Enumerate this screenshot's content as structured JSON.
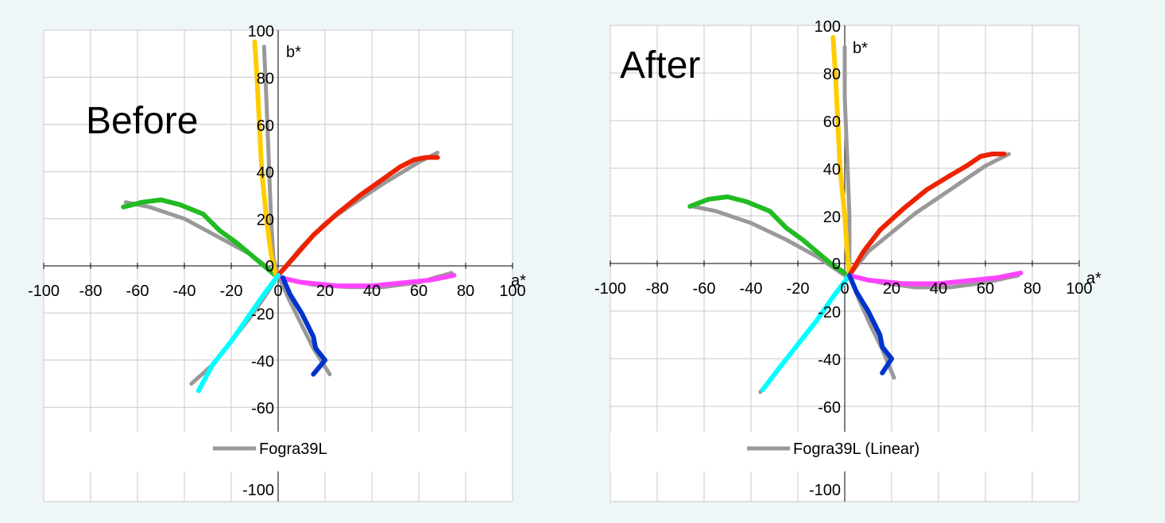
{
  "chart_data": [
    {
      "type": "line",
      "title": "Before",
      "xlabel": "a*",
      "ylabel": "b*",
      "xlim": [
        -100,
        100
      ],
      "ylim": [
        -100,
        100
      ],
      "x_ticks": [
        "-100",
        "-80",
        "-60",
        "-40",
        "-20",
        "0",
        "20",
        "40",
        "60",
        "80",
        "100"
      ],
      "y_ticks": [
        "100",
        "80",
        "60",
        "40",
        "20",
        "0",
        "-20",
        "-40",
        "-60",
        "-100"
      ],
      "grid": true,
      "legend": {
        "position": "bottom",
        "entries": [
          "Fogra39L"
        ]
      },
      "series": [
        {
          "name": "Fogra39L",
          "color": "#999999",
          "points": [
            [
              -65,
              27
            ],
            [
              -55,
              25
            ],
            [
              -40,
              20
            ],
            [
              -25,
              12
            ],
            [
              -12,
              5
            ],
            [
              0,
              -4
            ]
          ]
        },
        {
          "name": "Fogra39L",
          "color": "#999999",
          "points": [
            [
              -6,
              93
            ],
            [
              -5,
              70
            ],
            [
              -4,
              45
            ],
            [
              -3,
              20
            ],
            [
              -2,
              3
            ],
            [
              0,
              -4
            ]
          ]
        },
        {
          "name": "Fogra39L",
          "color": "#999999",
          "points": [
            [
              0,
              -4
            ],
            [
              10,
              8
            ],
            [
              20,
              18
            ],
            [
              30,
              25
            ],
            [
              45,
              35
            ],
            [
              60,
              44
            ],
            [
              68,
              48
            ]
          ]
        },
        {
          "name": "Fogra39L",
          "color": "#999999",
          "points": [
            [
              0,
              -5
            ],
            [
              15,
              -8
            ],
            [
              30,
              -9
            ],
            [
              45,
              -9
            ],
            [
              60,
              -7
            ],
            [
              74,
              -3
            ]
          ]
        },
        {
          "name": "Fogra39L",
          "color": "#999999",
          "points": [
            [
              0,
              -4
            ],
            [
              -5,
              -12
            ],
            [
              -12,
              -22
            ],
            [
              -20,
              -32
            ],
            [
              -28,
              -42
            ],
            [
              -37,
              -50
            ]
          ]
        },
        {
          "name": "Fogra39L",
          "color": "#999999",
          "points": [
            [
              0,
              -4
            ],
            [
              5,
              -15
            ],
            [
              10,
              -25
            ],
            [
              15,
              -35
            ],
            [
              22,
              -46
            ]
          ]
        },
        {
          "color": "#22bb22",
          "points": [
            [
              -66,
              25
            ],
            [
              -58,
              27
            ],
            [
              -50,
              28
            ],
            [
              -42,
              26
            ],
            [
              -32,
              22
            ],
            [
              -25,
              15
            ],
            [
              -18,
              10
            ],
            [
              -12,
              5
            ],
            [
              -6,
              0
            ],
            [
              0,
              -5
            ]
          ]
        },
        {
          "color": "#ffcc00",
          "points": [
            [
              -10,
              95
            ],
            [
              -9,
              80
            ],
            [
              -8,
              60
            ],
            [
              -7,
              40
            ],
            [
              -5,
              20
            ],
            [
              -3,
              5
            ],
            [
              -1,
              -4
            ]
          ]
        },
        {
          "color": "#ee2200",
          "points": [
            [
              0,
              -4
            ],
            [
              8,
              5
            ],
            [
              15,
              13
            ],
            [
              25,
              22
            ],
            [
              35,
              30
            ],
            [
              45,
              37
            ],
            [
              52,
              42
            ],
            [
              58,
              45
            ],
            [
              63,
              46
            ],
            [
              68,
              46
            ]
          ]
        },
        {
          "color": "#ff44ff",
          "points": [
            [
              1,
              -5
            ],
            [
              10,
              -7
            ],
            [
              25,
              -8.5
            ],
            [
              40,
              -8.5
            ],
            [
              55,
              -7
            ],
            [
              65,
              -6
            ],
            [
              75,
              -4
            ]
          ]
        },
        {
          "color": "#00ffff",
          "points": [
            [
              0,
              -4
            ],
            [
              -6,
              -12
            ],
            [
              -13,
              -22
            ],
            [
              -20,
              -32
            ],
            [
              -28,
              -42
            ],
            [
              -34,
              -53
            ]
          ]
        },
        {
          "color": "#0033cc",
          "points": [
            [
              2,
              -5
            ],
            [
              5,
              -12
            ],
            [
              10,
              -20
            ],
            [
              15,
              -30
            ],
            [
              16,
              -35
            ],
            [
              20,
              -40
            ],
            [
              15,
              -46
            ]
          ]
        }
      ]
    },
    {
      "type": "line",
      "title": "After",
      "xlabel": "a*",
      "ylabel": "b*",
      "xlim": [
        -100,
        100
      ],
      "ylim": [
        -100,
        100
      ],
      "x_ticks": [
        "-100",
        "-80",
        "-60",
        "-40",
        "-20",
        "0",
        "20",
        "40",
        "60",
        "80",
        "100"
      ],
      "y_ticks": [
        "100",
        "80",
        "60",
        "40",
        "20",
        "0",
        "-20",
        "-40",
        "-60",
        "-100"
      ],
      "grid": true,
      "legend": {
        "position": "bottom",
        "entries": [
          "Fogra39L (Linear)"
        ]
      },
      "series": [
        {
          "name": "Fogra39L (Linear)",
          "color": "#999999",
          "points": [
            [
              -65,
              24
            ],
            [
              -55,
              22
            ],
            [
              -40,
              17
            ],
            [
              -25,
              10
            ],
            [
              -12,
              3
            ],
            [
              0,
              -5
            ]
          ]
        },
        {
          "name": "Fogra39L (Linear)",
          "color": "#999999",
          "points": [
            [
              0,
              91
            ],
            [
              0,
              70
            ],
            [
              1,
              45
            ],
            [
              2,
              20
            ],
            [
              2,
              3
            ],
            [
              2,
              -5
            ]
          ]
        },
        {
          "name": "Fogra39L (Linear)",
          "color": "#999999",
          "points": [
            [
              2,
              -5
            ],
            [
              10,
              5
            ],
            [
              20,
              13
            ],
            [
              30,
              21
            ],
            [
              45,
              31
            ],
            [
              60,
              41
            ],
            [
              70,
              46
            ]
          ]
        },
        {
          "name": "Fogra39L (Linear)",
          "color": "#999999",
          "points": [
            [
              2,
              -5
            ],
            [
              15,
              -8
            ],
            [
              30,
              -10
            ],
            [
              45,
              -10
            ],
            [
              60,
              -8
            ],
            [
              74,
              -5
            ]
          ]
        },
        {
          "name": "Fogra39L (Linear)",
          "color": "#999999",
          "points": [
            [
              2,
              -5
            ],
            [
              -5,
              -14
            ],
            [
              -12,
              -24
            ],
            [
              -20,
              -34
            ],
            [
              -28,
              -44
            ],
            [
              -36,
              -54
            ]
          ]
        },
        {
          "name": "Fogra39L (Linear)",
          "color": "#999999",
          "points": [
            [
              2,
              -5
            ],
            [
              6,
              -15
            ],
            [
              11,
              -26
            ],
            [
              16,
              -36
            ],
            [
              21,
              -48
            ]
          ]
        },
        {
          "color": "#22bb22",
          "points": [
            [
              -66,
              24
            ],
            [
              -58,
              27
            ],
            [
              -50,
              28
            ],
            [
              -42,
              26
            ],
            [
              -32,
              22
            ],
            [
              -25,
              15
            ],
            [
              -18,
              10
            ],
            [
              -12,
              5
            ],
            [
              -6,
              0
            ],
            [
              0,
              -4
            ]
          ]
        },
        {
          "color": "#ffcc00",
          "points": [
            [
              -5,
              95
            ],
            [
              -4,
              80
            ],
            [
              -3,
              60
            ],
            [
              -2,
              40
            ],
            [
              0,
              20
            ],
            [
              1,
              5
            ],
            [
              2,
              -5
            ]
          ]
        },
        {
          "color": "#ee2200",
          "points": [
            [
              2,
              -5
            ],
            [
              8,
              5
            ],
            [
              15,
              14
            ],
            [
              25,
              23
            ],
            [
              35,
              31
            ],
            [
              45,
              37
            ],
            [
              52,
              41
            ],
            [
              58,
              45
            ],
            [
              63,
              46
            ],
            [
              68,
              46
            ]
          ]
        },
        {
          "color": "#ff44ff",
          "points": [
            [
              2,
              -5
            ],
            [
              10,
              -7
            ],
            [
              25,
              -8.5
            ],
            [
              40,
              -8.5
            ],
            [
              55,
              -7
            ],
            [
              65,
              -6
            ],
            [
              75,
              -4
            ]
          ]
        },
        {
          "color": "#00ffff",
          "points": [
            [
              2,
              -5
            ],
            [
              -5,
              -14
            ],
            [
              -12,
              -24
            ],
            [
              -20,
              -34
            ],
            [
              -28,
              -44
            ],
            [
              -35,
              -53
            ]
          ]
        },
        {
          "color": "#0033cc",
          "points": [
            [
              2,
              -5
            ],
            [
              5,
              -12
            ],
            [
              10,
              -20
            ],
            [
              15,
              -30
            ],
            [
              16,
              -35
            ],
            [
              20,
              -40
            ],
            [
              16,
              -46
            ]
          ]
        }
      ]
    }
  ]
}
